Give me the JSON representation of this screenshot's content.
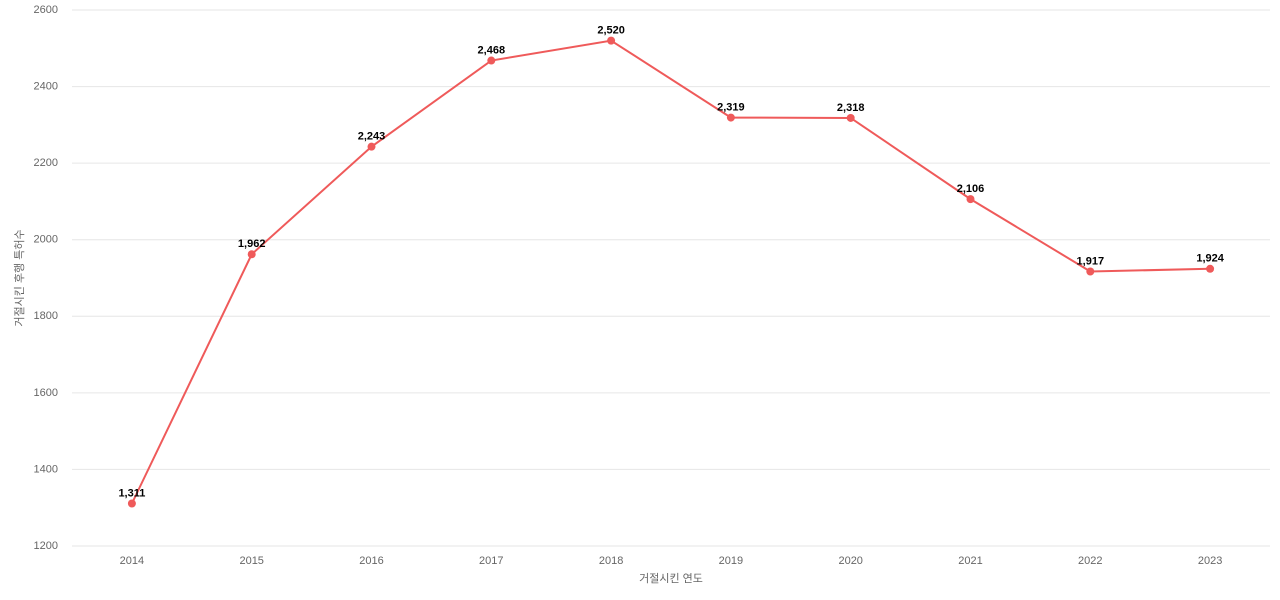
{
  "chart_data": {
    "type": "line",
    "x_label": "거절시킨 연도",
    "y_label": "거절시킨 후행 특허수",
    "categories": [
      "2014",
      "2015",
      "2016",
      "2017",
      "2018",
      "2019",
      "2020",
      "2021",
      "2022",
      "2023"
    ],
    "series": [
      {
        "name": "거절시킨 후행 특허수",
        "color": "#ef5a5a",
        "values": [
          1311,
          1962,
          2243,
          2468,
          2520,
          2319,
          2318,
          2106,
          1917,
          1924
        ],
        "value_labels": [
          "1,311",
          "1,962",
          "2,243",
          "2,468",
          "2,520",
          "2,319",
          "2,318",
          "2,106",
          "1,917",
          "1,924"
        ]
      }
    ],
    "ylim": [
      1200,
      2600
    ],
    "yticks": [
      1200,
      1400,
      1600,
      1800,
      2000,
      2200,
      2400,
      2600
    ],
    "grid": true
  }
}
